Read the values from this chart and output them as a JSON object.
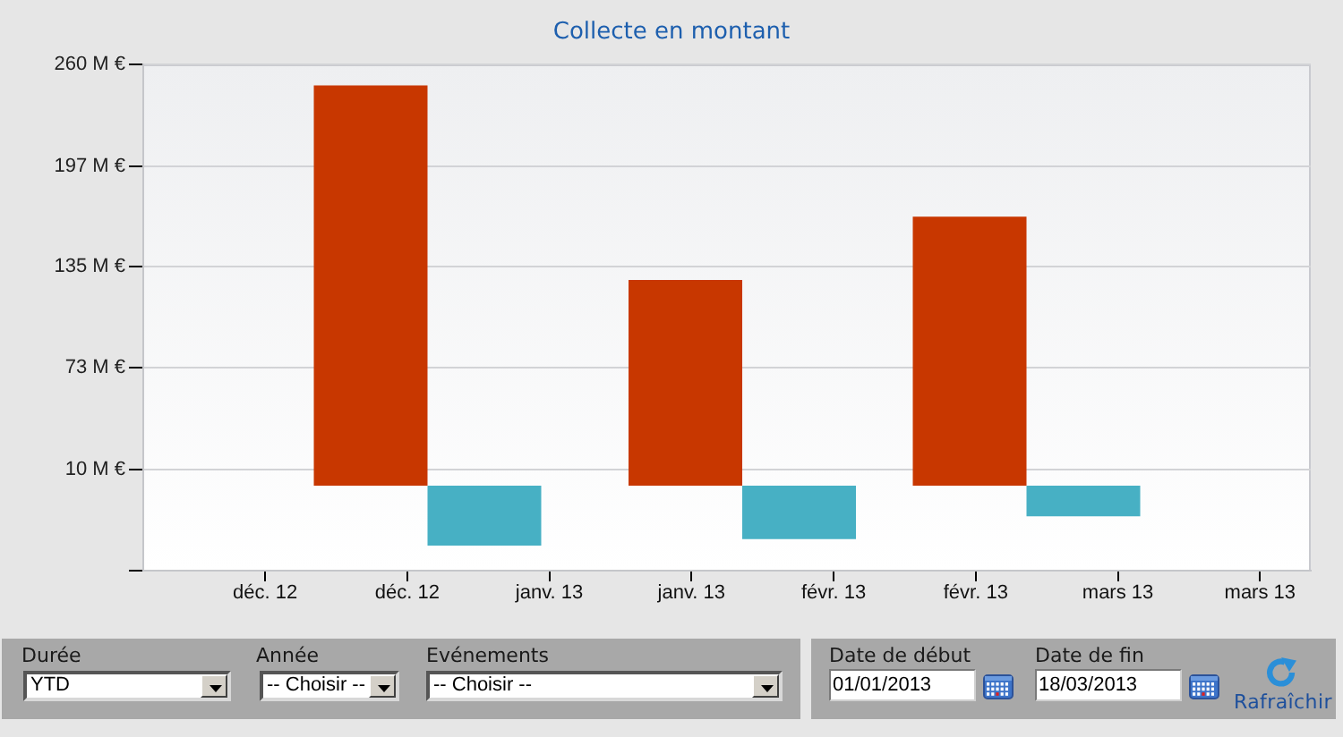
{
  "chart_data": {
    "type": "bar",
    "title": "Collecte en montant",
    "x": [
      "2013-01-01",
      "2013-02-01",
      "2013-03-01"
    ],
    "series": [
      {
        "color": "#c83700",
        "values": [
          247,
          127,
          166
        ]
      },
      {
        "color": "#47b0c4",
        "values": [
          -37,
          -33,
          -19
        ]
      }
    ],
    "xlim": [
      "2012-12-04",
      "2013-03-29"
    ],
    "xticks": [
      {
        "value": "2012-12-16",
        "label": "déc. 12"
      },
      {
        "value": "2012-12-30",
        "label": "déc. 12"
      },
      {
        "value": "2013-01-13",
        "label": "janv. 13"
      },
      {
        "value": "2013-01-27",
        "label": "janv. 13"
      },
      {
        "value": "2013-02-10",
        "label": "févr. 13"
      },
      {
        "value": "2013-02-24",
        "label": "févr. 13"
      },
      {
        "value": "2013-03-10",
        "label": "mars 13"
      },
      {
        "value": "2013-03-24",
        "label": "mars 13"
      }
    ],
    "ylim": [
      -52.5,
      260
    ],
    "yticks": [
      {
        "value": -52.5,
        "label": null
      },
      {
        "value": 10,
        "label": "10 M €"
      },
      {
        "value": 73,
        "label": "73 M €"
      },
      {
        "value": 135,
        "label": "135 M €"
      },
      {
        "value": 197,
        "label": "197 M €"
      },
      {
        "value": 260,
        "label": "260 M €"
      }
    ],
    "grid": "y",
    "annotations": [
      "Durée",
      "YTD",
      "Année",
      "-- Choisir --",
      "Evénements",
      "-- Choisir --",
      "Date de début",
      "01/01/2013",
      "Date de fin",
      "18/03/2013",
      "Rafraîchir"
    ]
  }
}
